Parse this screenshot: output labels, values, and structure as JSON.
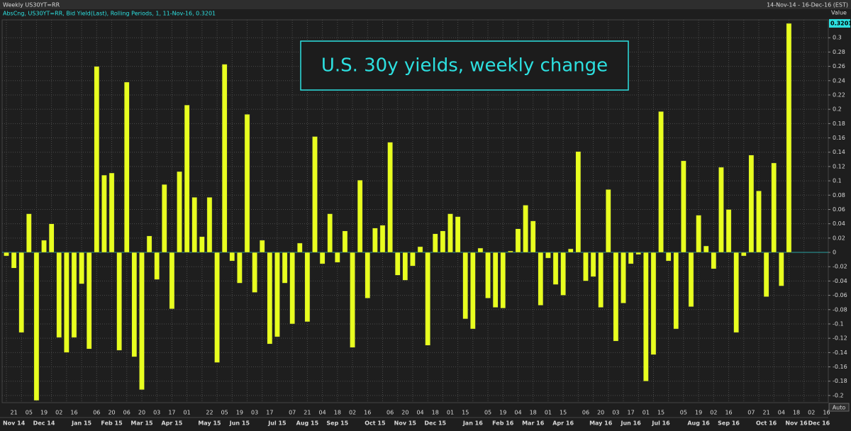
{
  "chart_data": {
    "type": "bar",
    "window_title": "Weekly US30YT=RR",
    "date_range": "14-Nov-14 - 16-Dec-16 (EST)",
    "title": "U.S. 30y yields, weekly change",
    "y_axis_label": "Value",
    "y_axis_mode": "Auto",
    "categories": [
      null,
      "21",
      null,
      "05",
      null,
      "19",
      null,
      "02",
      null,
      "16",
      null,
      null,
      "06",
      null,
      "20",
      null,
      "06",
      null,
      "20",
      null,
      "03",
      null,
      "17",
      null,
      "01",
      null,
      null,
      "22",
      null,
      "05",
      null,
      "19",
      null,
      "03",
      null,
      "17",
      null,
      null,
      "07",
      null,
      "21",
      null,
      "04",
      null,
      "18",
      null,
      "02",
      null,
      "16",
      null,
      null,
      "06",
      null,
      "20",
      null,
      "04",
      null,
      "18",
      null,
      "01",
      null,
      "15",
      null,
      null,
      "05",
      null,
      "19",
      null,
      "04",
      null,
      "18",
      null,
      "01",
      null,
      "15",
      null,
      null,
      "06",
      null,
      "20",
      null,
      "03",
      null,
      "17",
      null,
      "01",
      null,
      "15",
      null,
      null,
      "05",
      null,
      "19",
      null,
      "02",
      null,
      "16",
      null,
      null,
      "07",
      null,
      "21",
      null,
      "04",
      null,
      "18",
      null,
      "02",
      null,
      "16"
    ],
    "month_labels": [
      null,
      "Nov 14",
      null,
      null,
      null,
      "Dec 14",
      null,
      null,
      null,
      null,
      "Jan 15",
      null,
      null,
      null,
      "Feb 15",
      null,
      null,
      null,
      "Mar 15",
      null,
      null,
      null,
      "Apr 15",
      null,
      null,
      null,
      null,
      "May 15",
      null,
      null,
      null,
      "Jun 15",
      null,
      null,
      null,
      null,
      "Jul 15",
      null,
      null,
      null,
      "Aug 15",
      null,
      null,
      null,
      "Sep 15",
      null,
      null,
      null,
      null,
      "Oct 15",
      null,
      null,
      null,
      "Nov 15",
      null,
      null,
      null,
      "Dec 15",
      null,
      null,
      null,
      null,
      "Jan 16",
      null,
      null,
      null,
      "Feb 16",
      null,
      null,
      null,
      "Mar 16",
      null,
      null,
      null,
      "Apr 16",
      null,
      null,
      null,
      null,
      "May 16",
      null,
      null,
      null,
      "Jun 16",
      null,
      null,
      null,
      "Jul 16",
      null,
      null,
      null,
      null,
      "Aug 16",
      null,
      null,
      null,
      "Sep 16",
      null,
      null,
      null,
      null,
      "Oct 16",
      null,
      null,
      null,
      "Nov 16",
      null,
      null,
      "Dec 16",
      null
    ],
    "series": [
      {
        "name": "AbsCng, US30YT=RR, Bid Yield(Last), Rolling Periods, 1, 11-Nov-16, 0.3201",
        "color": "#e8ff1f",
        "values": [
          -0.005,
          -0.022,
          -0.112,
          0.054,
          -0.207,
          0.017,
          0.04,
          -0.119,
          -0.14,
          -0.119,
          -0.044,
          -0.135,
          0.26,
          0.108,
          0.111,
          -0.137,
          0.238,
          -0.146,
          -0.192,
          0.023,
          -0.038,
          0.095,
          -0.079,
          0.113,
          0.206,
          0.077,
          0.022,
          0.077,
          -0.154,
          0.263,
          -0.012,
          -0.043,
          0.193,
          -0.056,
          0.017,
          -0.128,
          -0.118,
          -0.043,
          -0.1,
          0.013,
          -0.097,
          0.162,
          -0.016,
          0.054,
          -0.014,
          0.03,
          -0.133,
          0.101,
          -0.064,
          0.034,
          0.038,
          0.154,
          -0.032,
          -0.039,
          -0.019,
          0.008,
          -0.13,
          0.026,
          0.03,
          0.054,
          0.05,
          -0.093,
          -0.107,
          0.006,
          -0.064,
          -0.077,
          -0.078,
          0.002,
          0.033,
          0.066,
          0.044,
          -0.074,
          -0.008,
          -0.045,
          -0.06,
          0.005,
          0.141,
          -0.04,
          -0.034,
          -0.077,
          0.088,
          -0.124,
          -0.071,
          -0.016,
          -0.003,
          -0.18,
          -0.143,
          0.197,
          -0.012,
          -0.107,
          0.128,
          -0.076,
          0.052,
          0.009,
          -0.023,
          0.119,
          0.06,
          -0.112,
          -0.005,
          0.136,
          0.086,
          -0.062,
          0.125,
          -0.047,
          0.3201,
          null,
          null,
          null,
          null,
          null
        ]
      }
    ],
    "ylim": [
      -0.21,
      0.325
    ],
    "yticks": [
      -0.2,
      -0.18,
      -0.16,
      -0.14,
      -0.12,
      -0.1,
      -0.08,
      -0.06,
      -0.04,
      -0.02,
      0,
      0.02,
      0.04,
      0.06,
      0.08,
      0.1,
      0.12,
      0.14,
      0.16,
      0.18,
      0.2,
      0.22,
      0.24,
      0.26,
      0.28,
      0.3
    ],
    "grid": true
  }
}
